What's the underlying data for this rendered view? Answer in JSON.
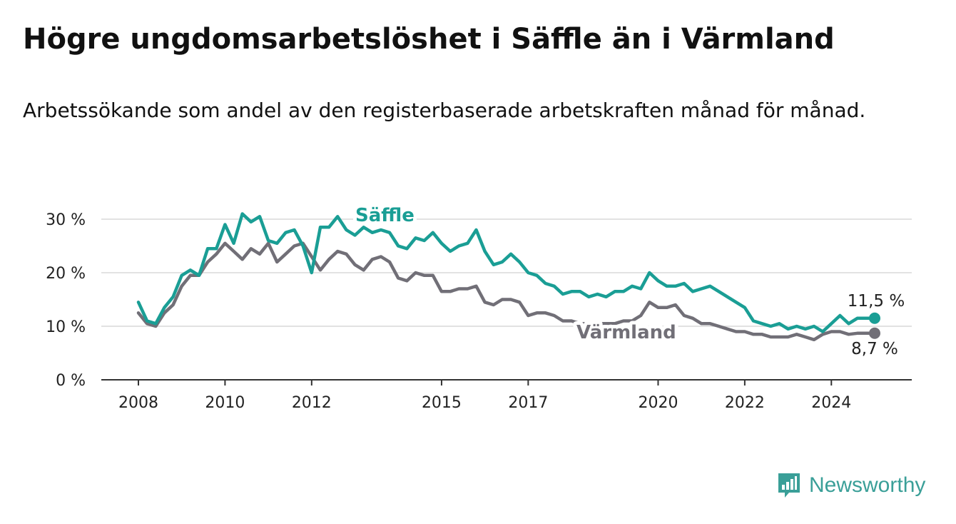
{
  "title": "Högre ungdomsarbetslöshet i Säffle än i Värmland",
  "subtitle": "Arbetssökande som andel av den registerbaserade arbetskraften månad för månad.",
  "brand": {
    "name": "Newsworthy"
  },
  "colors": {
    "saffle": "#1a9e95",
    "varmland": "#716f77",
    "grid": "#d8d8d8",
    "axis": "#333333"
  },
  "chart_data": {
    "type": "line",
    "ylim": [
      0,
      30
    ],
    "yticks": [
      0,
      10,
      20,
      30
    ],
    "ytick_labels": [
      "0 %",
      "10 %",
      "20 %",
      "30 %"
    ],
    "xlim": [
      2008.0,
      2025.75
    ],
    "xticks": [
      2008,
      2010,
      2012,
      2015,
      2017,
      2020,
      2022,
      2024
    ],
    "xtick_labels": [
      "2008",
      "2010",
      "2012",
      "2015",
      "2017",
      "2020",
      "2022",
      "2024"
    ],
    "grid": true,
    "series": [
      {
        "name": "Säffle",
        "end_label": "11,5 %",
        "x": [
          2008.0,
          2008.2,
          2008.4,
          2008.6,
          2008.8,
          2009.0,
          2009.2,
          2009.4,
          2009.6,
          2009.8,
          2010.0,
          2010.2,
          2010.4,
          2010.6,
          2010.8,
          2011.0,
          2011.2,
          2011.4,
          2011.6,
          2011.8,
          2012.0,
          2012.2,
          2012.4,
          2012.6,
          2012.8,
          2013.0,
          2013.2,
          2013.4,
          2013.6,
          2013.8,
          2014.0,
          2014.2,
          2014.4,
          2014.6,
          2014.8,
          2015.0,
          2015.2,
          2015.4,
          2015.6,
          2015.8,
          2016.0,
          2016.2,
          2016.4,
          2016.6,
          2016.8,
          2017.0,
          2017.2,
          2017.4,
          2017.6,
          2017.8,
          2018.0,
          2018.2,
          2018.4,
          2018.6,
          2018.8,
          2019.0,
          2019.2,
          2019.4,
          2019.6,
          2019.8,
          2020.0,
          2020.2,
          2020.4,
          2020.6,
          2020.8,
          2021.0,
          2021.2,
          2021.4,
          2021.6,
          2021.8,
          2022.0,
          2022.2,
          2022.4,
          2022.6,
          2022.8,
          2023.0,
          2023.2,
          2023.4,
          2023.6,
          2023.8,
          2024.0,
          2024.2,
          2024.4,
          2024.6,
          2024.8,
          2025.0
        ],
        "y": [
          14.5,
          11.0,
          10.5,
          13.5,
          15.5,
          19.5,
          20.5,
          19.5,
          24.5,
          24.5,
          29.0,
          25.5,
          31.0,
          29.5,
          30.5,
          26.0,
          25.5,
          27.5,
          28.0,
          25.0,
          20.0,
          28.5,
          28.5,
          30.5,
          28.0,
          27.0,
          28.5,
          27.5,
          28.0,
          27.5,
          25.0,
          24.5,
          26.5,
          26.0,
          27.5,
          25.5,
          24.0,
          25.0,
          25.5,
          28.0,
          24.0,
          21.5,
          22.0,
          23.5,
          22.0,
          20.0,
          19.5,
          18.0,
          17.5,
          16.0,
          16.5,
          16.5,
          15.5,
          16.0,
          15.5,
          16.5,
          16.5,
          17.5,
          17.0,
          20.0,
          18.5,
          17.5,
          17.5,
          18.0,
          16.5,
          17.0,
          17.5,
          16.5,
          15.5,
          14.5,
          13.5,
          11.0,
          10.5,
          10.0,
          10.5,
          9.5,
          10.0,
          9.5,
          10.0,
          9.0,
          10.5,
          12.0,
          10.5,
          11.5,
          11.5,
          11.5
        ]
      },
      {
        "name": "Värmland",
        "end_label": "8,7 %",
        "x": [
          2008.0,
          2008.2,
          2008.4,
          2008.6,
          2008.8,
          2009.0,
          2009.2,
          2009.4,
          2009.6,
          2009.8,
          2010.0,
          2010.2,
          2010.4,
          2010.6,
          2010.8,
          2011.0,
          2011.2,
          2011.4,
          2011.6,
          2011.8,
          2012.0,
          2012.2,
          2012.4,
          2012.6,
          2012.8,
          2013.0,
          2013.2,
          2013.4,
          2013.6,
          2013.8,
          2014.0,
          2014.2,
          2014.4,
          2014.6,
          2014.8,
          2015.0,
          2015.2,
          2015.4,
          2015.6,
          2015.8,
          2016.0,
          2016.2,
          2016.4,
          2016.6,
          2016.8,
          2017.0,
          2017.2,
          2017.4,
          2017.6,
          2017.8,
          2018.0,
          2018.2,
          2018.4,
          2018.6,
          2018.8,
          2019.0,
          2019.2,
          2019.4,
          2019.6,
          2019.8,
          2020.0,
          2020.2,
          2020.4,
          2020.6,
          2020.8,
          2021.0,
          2021.2,
          2021.4,
          2021.6,
          2021.8,
          2022.0,
          2022.2,
          2022.4,
          2022.6,
          2022.8,
          2023.0,
          2023.2,
          2023.4,
          2023.6,
          2023.8,
          2024.0,
          2024.2,
          2024.4,
          2024.6,
          2024.8,
          2025.0
        ],
        "y": [
          12.5,
          10.5,
          10.0,
          12.5,
          14.0,
          17.5,
          19.5,
          19.5,
          22.0,
          23.5,
          25.5,
          24.0,
          22.5,
          24.5,
          23.5,
          25.5,
          22.0,
          23.5,
          25.0,
          25.5,
          23.0,
          20.5,
          22.5,
          24.0,
          23.5,
          21.5,
          20.5,
          22.5,
          23.0,
          22.0,
          19.0,
          18.5,
          20.0,
          19.5,
          19.5,
          16.5,
          16.5,
          17.0,
          17.0,
          17.5,
          14.5,
          14.0,
          15.0,
          15.0,
          14.5,
          12.0,
          12.5,
          12.5,
          12.0,
          11.0,
          11.0,
          10.5,
          10.5,
          10.5,
          10.5,
          10.5,
          11.0,
          11.0,
          12.0,
          14.5,
          13.5,
          13.5,
          14.0,
          12.0,
          11.5,
          10.5,
          10.5,
          10.0,
          9.5,
          9.0,
          9.0,
          8.5,
          8.5,
          8.0,
          8.0,
          8.0,
          8.5,
          8.0,
          7.5,
          8.5,
          9.0,
          9.0,
          8.5,
          8.7,
          8.7,
          8.7
        ]
      }
    ]
  }
}
